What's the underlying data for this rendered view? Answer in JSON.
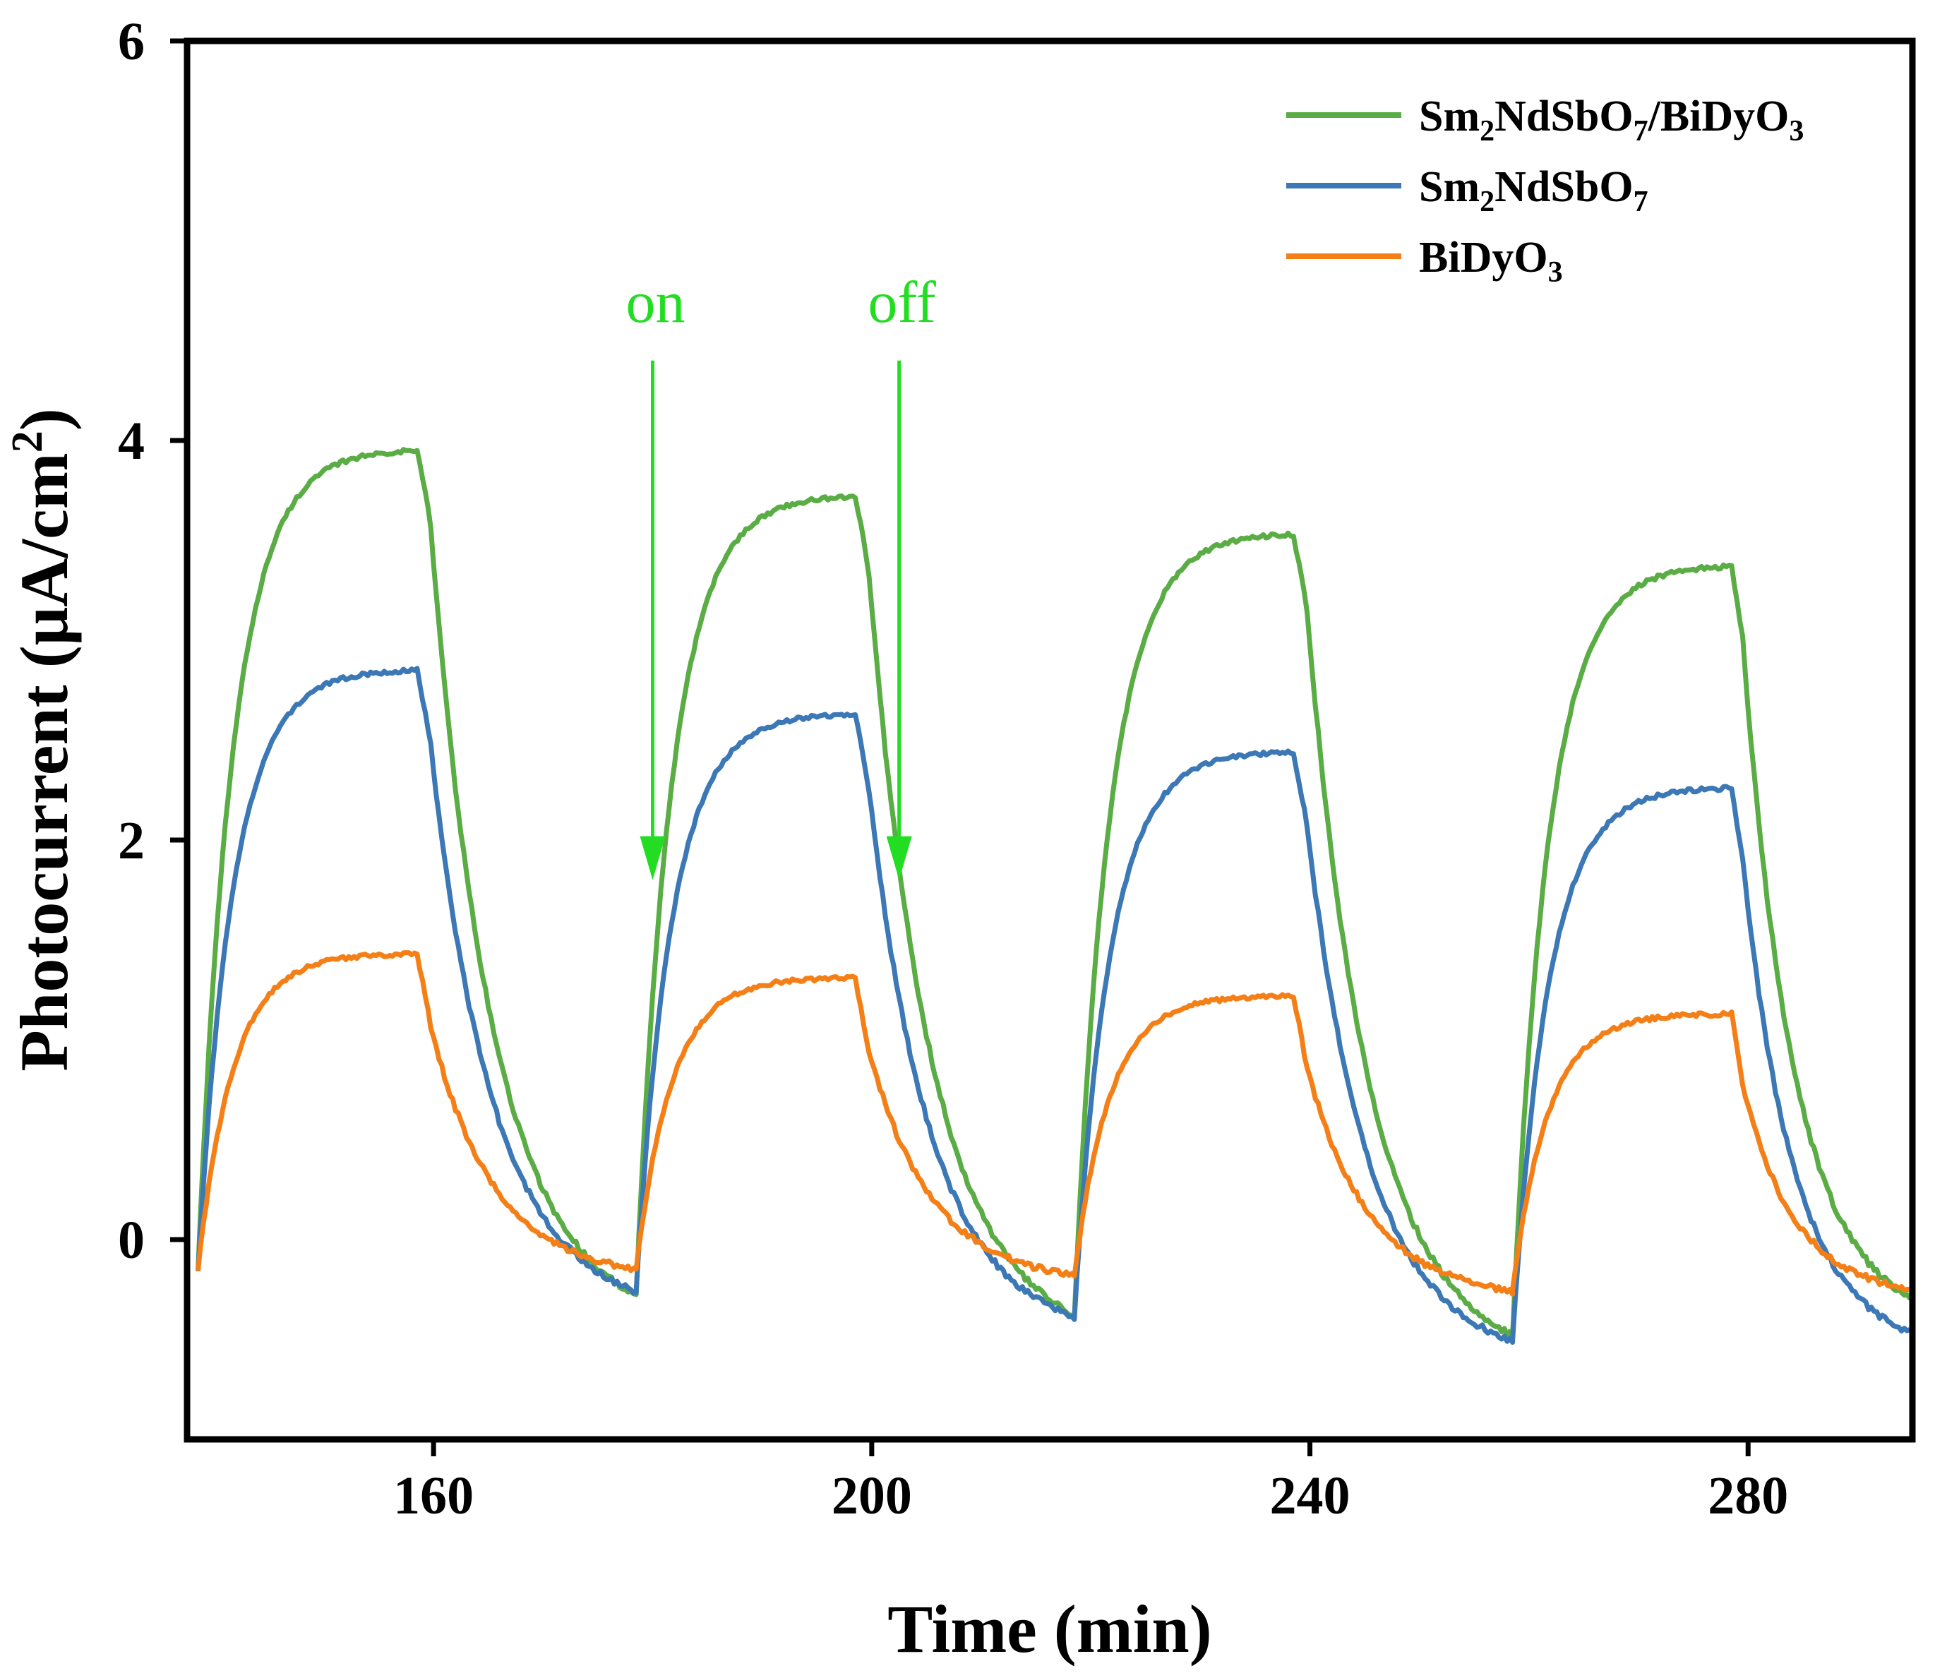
{
  "chart_data": {
    "type": "line",
    "title": "",
    "xlabel": "Time (min)",
    "ylabel": "Photocurrent (μA/cm²)",
    "ylabel_parts": {
      "main": "Photocurrent (μA/cm",
      "sup": "2",
      "end": ")"
    },
    "xlim": [
      137.5,
      295
    ],
    "ylim": [
      -1.0,
      6.0
    ],
    "xticks": [
      160,
      200,
      240,
      280
    ],
    "xtick_labels": [
      "160",
      "200",
      "240",
      "280"
    ],
    "yticks": [
      0,
      2,
      4,
      6
    ],
    "ytick_labels": [
      "0",
      "2",
      "4",
      "6"
    ],
    "grid": false,
    "legend_position": "top-right",
    "pulse_cycles": [
      {
        "on": 138.5,
        "off": 158.5,
        "end": 178.5
      },
      {
        "on": 178.5,
        "off": 198.5,
        "end": 218.5
      },
      {
        "on": 218.5,
        "off": 238.5,
        "end": 258.5
      },
      {
        "on": 258.5,
        "off": 278.5,
        "end": 295
      }
    ],
    "series": [
      {
        "name": "Sm2NdSbO7/BiDyO3",
        "legend_parts": [
          [
            "Sm",
            ""
          ],
          [
            "2",
            "sub"
          ],
          [
            "NdSbO",
            ""
          ],
          [
            "7",
            "sub"
          ],
          [
            "/BiDyO",
            ""
          ],
          [
            "3",
            "sub"
          ]
        ],
        "color": "#5aac44",
        "start": -0.15,
        "peaks": [
          3.95,
          3.72,
          3.53,
          3.37
        ],
        "troughs": [
          -0.28,
          -0.38,
          -0.48,
          -0.3
        ]
      },
      {
        "name": "Sm2NdSbO7",
        "legend_parts": [
          [
            "Sm",
            ""
          ],
          [
            "2",
            "sub"
          ],
          [
            "NdSbO",
            ""
          ],
          [
            "7",
            "sub"
          ]
        ],
        "color": "#3b78b5",
        "start": -0.15,
        "peaks": [
          2.85,
          2.63,
          2.44,
          2.26
        ],
        "troughs": [
          -0.26,
          -0.39,
          -0.51,
          -0.47
        ]
      },
      {
        "name": "BiDyO3",
        "legend_parts": [
          [
            "BiDyO",
            ""
          ],
          [
            "3",
            "sub"
          ]
        ],
        "color": "#f57f17",
        "start": -0.15,
        "peaks": [
          1.43,
          1.31,
          1.22,
          1.13
        ],
        "troughs": [
          -0.15,
          -0.18,
          -0.26,
          -0.25
        ]
      }
    ],
    "annotations": [
      {
        "text": "on",
        "color": "#22dd22",
        "x": 180,
        "y_from": 4.4,
        "y_to": 1.8
      },
      {
        "text": "off",
        "color": "#22dd22",
        "x": 202.5,
        "y_from": 4.4,
        "y_to": 1.8
      }
    ]
  }
}
